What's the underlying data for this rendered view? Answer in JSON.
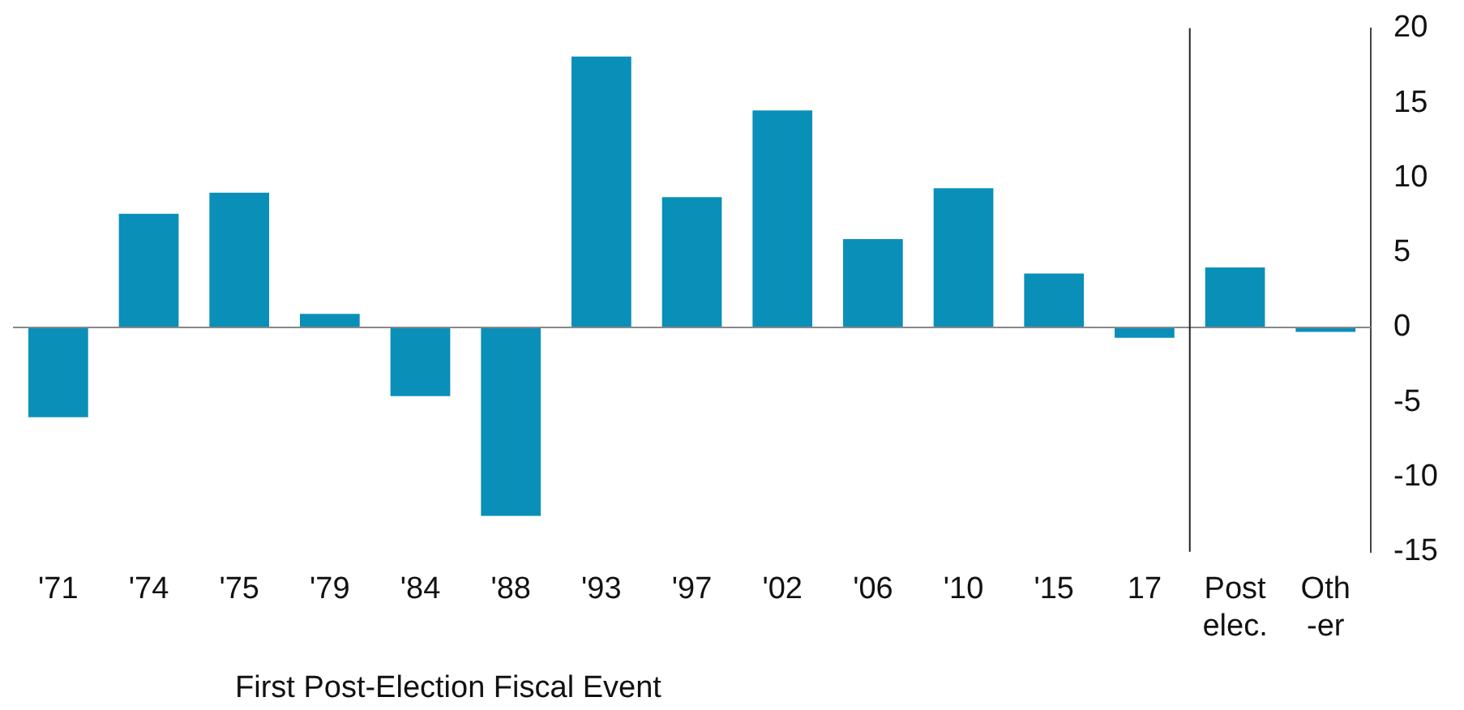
{
  "chart_data": {
    "type": "bar",
    "xlabel": "First Post-Election Fiscal Event",
    "categories": [
      "'71",
      "'74",
      "'75",
      "'79",
      "'84",
      "'88",
      "'93",
      "'97",
      "'02",
      "'06",
      "'10",
      "'15",
      "17",
      "Post elec.",
      "Oth -er"
    ],
    "values": [
      -6.0,
      7.6,
      9.0,
      0.9,
      -4.6,
      -12.6,
      18.1,
      8.7,
      14.5,
      5.9,
      9.3,
      3.6,
      -0.7,
      4.0,
      -0.3
    ],
    "color": "#0a8fb8",
    "ylim": [
      -15,
      20
    ],
    "yticks": [
      -15,
      -10,
      -5,
      0,
      5,
      10,
      15,
      20
    ],
    "grid": false,
    "legend": false,
    "ref_lines": [
      {
        "axis": "x",
        "value": "Post elec.",
        "color": "#222222"
      }
    ]
  }
}
